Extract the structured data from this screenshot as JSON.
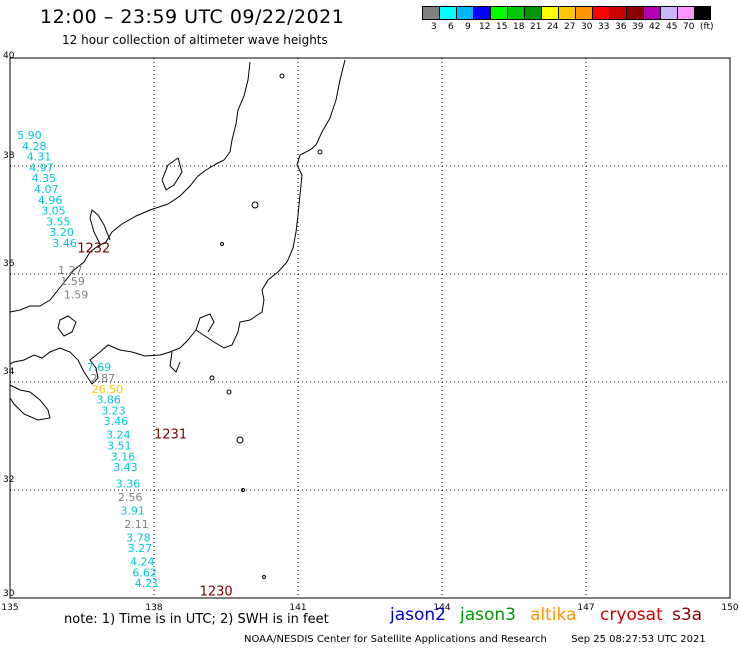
{
  "title": "12:00 – 23:59 UTC 09/22/2021",
  "subtitle": "12 hour collection of altimeter wave heights",
  "scale": {
    "unit": "(ft)",
    "colors": [
      "#808080",
      "#00ffff",
      "#00b4ff",
      "#0000ff",
      "#00ff00",
      "#00c800",
      "#009600",
      "#ffff00",
      "#ffc800",
      "#ff9600",
      "#ff0000",
      "#c80000",
      "#8b0000",
      "#b400b4",
      "#c8b4ff",
      "#ff96ff",
      "#000000"
    ],
    "labels": [
      "3",
      "6",
      "9",
      "12",
      "15",
      "18",
      "21",
      "24",
      "27",
      "30",
      "33",
      "36",
      "39",
      "42",
      "45",
      "70"
    ]
  },
  "axes": {
    "lon_ticks": [
      "135",
      "138",
      "141",
      "144",
      "147",
      "150"
    ],
    "lat_ticks": [
      "40",
      "38",
      "36",
      "34",
      "32",
      "30"
    ],
    "lon_range": [
      135,
      150
    ],
    "lat_range": [
      30,
      40
    ]
  },
  "wave_labels": [
    {
      "text": "5.90",
      "lon": 135.15,
      "lat": 38.5,
      "color": "#00c8d8"
    },
    {
      "text": "4.28",
      "lon": 135.25,
      "lat": 38.3,
      "color": "#00c8d8"
    },
    {
      "text": "4.31",
      "lon": 135.35,
      "lat": 38.1,
      "color": "#00c8d8"
    },
    {
      "text": "4.97",
      "lon": 135.4,
      "lat": 37.9,
      "color": "#00c8d8"
    },
    {
      "text": "4.35",
      "lon": 135.45,
      "lat": 37.7,
      "color": "#00c8d8"
    },
    {
      "text": "4.07",
      "lon": 135.5,
      "lat": 37.5,
      "color": "#00c8d8"
    },
    {
      "text": "4.96",
      "lon": 135.58,
      "lat": 37.3,
      "color": "#00c8d8"
    },
    {
      "text": "3.05",
      "lon": 135.65,
      "lat": 37.1,
      "color": "#00c8d8"
    },
    {
      "text": "3.55",
      "lon": 135.75,
      "lat": 36.9,
      "color": "#00c8d8"
    },
    {
      "text": "3.20",
      "lon": 135.82,
      "lat": 36.7,
      "color": "#00c8d8"
    },
    {
      "text": "3.46",
      "lon": 135.88,
      "lat": 36.5,
      "color": "#00c8d8"
    },
    {
      "text": "1.27",
      "lon": 136.0,
      "lat": 36.0,
      "color": "#808080"
    },
    {
      "text": "1.59",
      "lon": 136.05,
      "lat": 35.8,
      "color": "#808080"
    },
    {
      "text": "1.59",
      "lon": 136.12,
      "lat": 35.55,
      "color": "#808080"
    },
    {
      "text": "7.69",
      "lon": 136.6,
      "lat": 34.2,
      "color": "#00c8d8"
    },
    {
      "text": "2.87",
      "lon": 136.68,
      "lat": 34.0,
      "color": "#808080"
    },
    {
      "text": "26.50",
      "lon": 136.7,
      "lat": 33.8,
      "color": "#ffc800"
    },
    {
      "text": "3.86",
      "lon": 136.8,
      "lat": 33.6,
      "color": "#00c8d8"
    },
    {
      "text": "3.23",
      "lon": 136.9,
      "lat": 33.4,
      "color": "#00c8d8"
    },
    {
      "text": "3.46",
      "lon": 136.95,
      "lat": 33.2,
      "color": "#00c8d8"
    },
    {
      "text": "3.24",
      "lon": 137.0,
      "lat": 32.95,
      "color": "#00c8d8"
    },
    {
      "text": "3.51",
      "lon": 137.02,
      "lat": 32.75,
      "color": "#00c8d8"
    },
    {
      "text": "3.16",
      "lon": 137.1,
      "lat": 32.55,
      "color": "#00c8d8"
    },
    {
      "text": "3.43",
      "lon": 137.15,
      "lat": 32.35,
      "color": "#00c8d8"
    },
    {
      "text": "3.36",
      "lon": 137.2,
      "lat": 32.05,
      "color": "#00c8d8"
    },
    {
      "text": "2.56",
      "lon": 137.25,
      "lat": 31.8,
      "color": "#808080"
    },
    {
      "text": "3.91",
      "lon": 137.3,
      "lat": 31.55,
      "color": "#00c8d8"
    },
    {
      "text": "2.11",
      "lon": 137.38,
      "lat": 31.3,
      "color": "#808080"
    },
    {
      "text": "3.78",
      "lon": 137.42,
      "lat": 31.05,
      "color": "#00c8d8"
    },
    {
      "text": "3.27",
      "lon": 137.45,
      "lat": 30.85,
      "color": "#00c8d8"
    },
    {
      "text": "4.24",
      "lon": 137.5,
      "lat": 30.6,
      "color": "#00c8d8"
    },
    {
      "text": "6.62",
      "lon": 137.55,
      "lat": 30.4,
      "color": "#00c8d8"
    },
    {
      "text": "4.21",
      "lon": 137.6,
      "lat": 30.2,
      "color": "#00c8d8"
    }
  ],
  "time_labels": [
    {
      "text": "1232",
      "lon": 136.4,
      "lat": 36.4,
      "color": "#7a0000"
    },
    {
      "text": "1231",
      "lon": 138.0,
      "lat": 32.95,
      "color": "#7a0000"
    },
    {
      "text": "1230",
      "lon": 138.95,
      "lat": 30.05,
      "color": "#7a0000"
    }
  ],
  "note": "note:  1) Time is in UTC;  2) SWH is in feet",
  "legend": [
    {
      "text": "jason2",
      "color": "#0000cc"
    },
    {
      "text": "jason3",
      "color": "#009600"
    },
    {
      "text": "altika",
      "color": "#ff9600"
    },
    {
      "text": "cryosat",
      "color": "#cc0000"
    },
    {
      "text": "s3a",
      "color": "#8b0000"
    }
  ],
  "credit": "NOAA/NESDIS Center for Satellite Applications and Research",
  "timestamp": "Sep 25 08:27:53 UTC 2021"
}
